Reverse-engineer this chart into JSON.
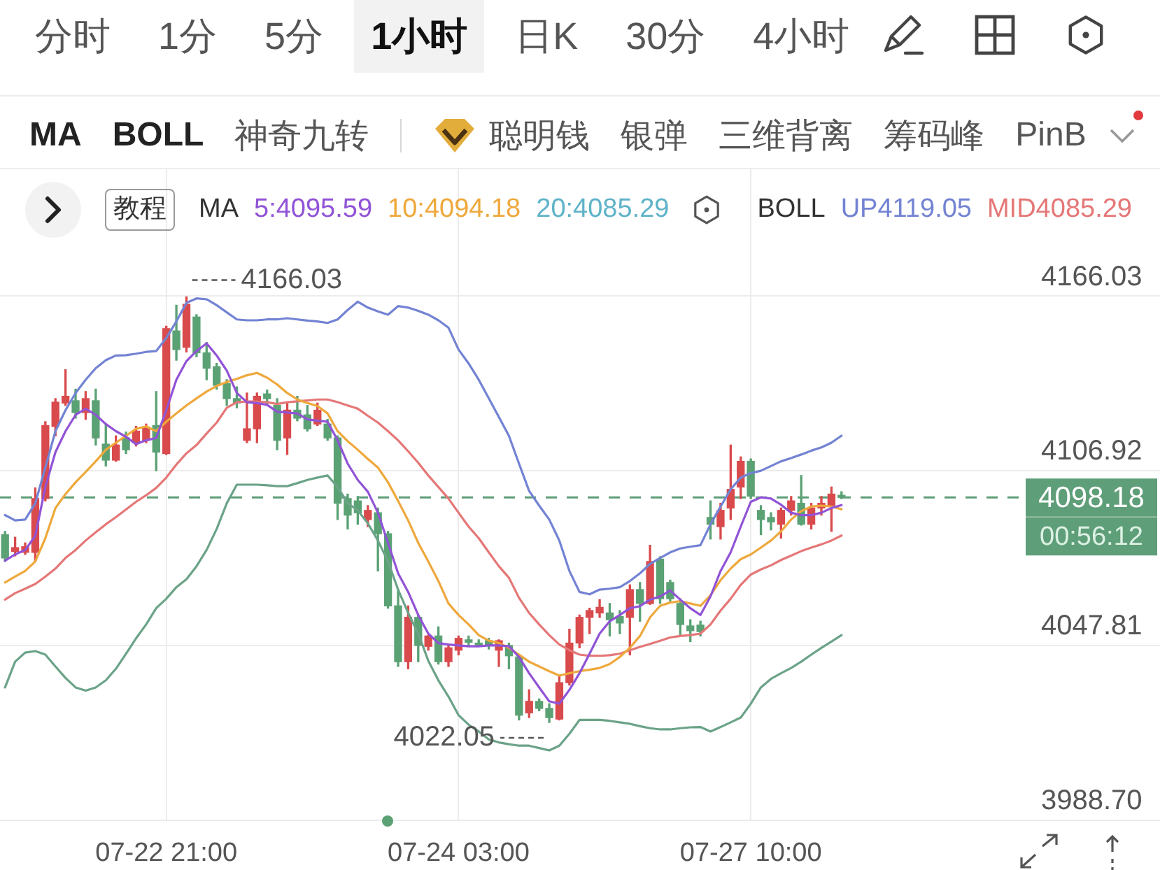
{
  "chart_data": {
    "type": "candlestick",
    "categories": [
      null,
      null,
      null,
      null,
      null,
      null,
      null,
      null,
      null,
      null,
      null,
      null,
      null,
      null,
      null,
      null,
      "07-22 21:00",
      null,
      null,
      null,
      null,
      null,
      null,
      null,
      null,
      null,
      null,
      null,
      null,
      null,
      null,
      null,
      null,
      null,
      null,
      null,
      null,
      null,
      null,
      null,
      null,
      null,
      null,
      null,
      null,
      "07-24 03:00",
      null,
      null,
      null,
      null,
      null,
      null,
      null,
      null,
      null,
      null,
      null,
      null,
      null,
      null,
      null,
      null,
      null,
      null,
      null,
      null,
      null,
      null,
      null,
      null,
      null,
      null,
      null,
      null,
      "07-27 10:00",
      null,
      null,
      null,
      null,
      null,
      null,
      null,
      null,
      null
    ],
    "ohlc": [
      [
        4085.6,
        4086.7,
        4076.5,
        4077.7
      ],
      [
        4079.9,
        4084.7,
        4078.4,
        4081.2
      ],
      [
        4079.6,
        4082.8,
        4078.9,
        4081.5
      ],
      [
        4079.6,
        4101.4,
        4076.5,
        4097.8
      ],
      [
        4097.8,
        4123.8,
        4097.0,
        4122.5
      ],
      [
        4122.2,
        4131.6,
        4119.0,
        4130.4
      ],
      [
        4130.1,
        4141.4,
        4129.3,
        4132.4
      ],
      [
        4130.9,
        4134.8,
        4125.0,
        4126.9
      ],
      [
        4126.9,
        4134.0,
        4124.6,
        4131.6
      ],
      [
        4130.9,
        4134.8,
        4115.9,
        4118.3
      ],
      [
        4116.2,
        4123.0,
        4108.8,
        4110.8
      ],
      [
        4110.8,
        4119.0,
        4110.4,
        4115.9
      ],
      [
        4118.3,
        4120.3,
        4113.0,
        4114.3
      ],
      [
        4116.7,
        4122.2,
        4115.6,
        4120.6
      ],
      [
        4117.5,
        4123.0,
        4116.7,
        4121.9
      ],
      [
        4122.5,
        4134.0,
        4107.2,
        4113.5
      ],
      [
        4113.0,
        4156.1,
        4112.7,
        4155.3
      ],
      [
        4154.5,
        4163.2,
        4144.6,
        4148.2
      ],
      [
        4149.0,
        4166.03,
        4147.4,
        4163.5
      ],
      [
        4159.2,
        4160.0,
        4145.8,
        4147.1
      ],
      [
        4147.1,
        4150.6,
        4138.0,
        4141.9
      ],
      [
        4142.4,
        4143.5,
        4134.8,
        4136.1
      ],
      [
        4136.7,
        4138.0,
        4129.3,
        4131.6
      ],
      [
        4131.6,
        4135.6,
        4128.5,
        4130.1
      ],
      [
        4117.5,
        4133.5,
        4116.7,
        4121.4
      ],
      [
        4121.4,
        4133.5,
        4116.7,
        4132.4
      ],
      [
        4133.2,
        4134.5,
        4129.3,
        4131.6
      ],
      [
        4129.3,
        4131.6,
        4114.3,
        4117.5
      ],
      [
        4118.3,
        4130.1,
        4112.7,
        4127.7
      ],
      [
        4127.7,
        4132.4,
        4124.1,
        4125.0
      ],
      [
        4126.1,
        4129.3,
        4120.6,
        4121.4
      ],
      [
        4123.0,
        4130.1,
        4122.5,
        4127.7
      ],
      [
        4123.0,
        4124.6,
        4117.5,
        4118.3
      ],
      [
        4118.3,
        4119.0,
        4090.7,
        4096.2
      ],
      [
        4097.8,
        4099.3,
        4087.5,
        4092.2
      ],
      [
        4097.0,
        4098.5,
        4089.1,
        4093.0
      ],
      [
        4090.7,
        4095.4,
        4088.3,
        4093.8
      ],
      [
        4093.0,
        4094.6,
        4073.3,
        4085.9
      ],
      [
        4085.9,
        4086.7,
        4060.7,
        4061.5
      ],
      [
        4061.5,
        4067.0,
        4041.0,
        4042.6
      ],
      [
        4042.6,
        4061.5,
        4040.2,
        4057.6
      ],
      [
        4057.6,
        4058.4,
        4042.6,
        4048.1
      ],
      [
        4047.8,
        4051.6,
        4046.5,
        4051.3
      ],
      [
        4051.3,
        4054.4,
        4041.8,
        4042.6
      ],
      [
        4042.6,
        4048.1,
        4041.0,
        4047.3
      ],
      [
        4046.5,
        4051.3,
        4044.9,
        4050.5
      ],
      [
        4050.0,
        4051.3,
        4047.8,
        4049.2
      ],
      [
        4048.9,
        4050.0,
        4047.8,
        4048.1
      ],
      [
        4049.7,
        4050.5,
        4046.9,
        4048.1
      ],
      [
        4046.5,
        4050.0,
        4041.0,
        4049.7
      ],
      [
        4048.1,
        4048.9,
        4040.2,
        4044.6
      ],
      [
        4044.2,
        4044.9,
        4022.9,
        4024.5
      ],
      [
        4025.3,
        4033.1,
        4023.7,
        4029.2
      ],
      [
        4029.2,
        4030.0,
        4026.0,
        4026.8
      ],
      [
        4026.8,
        4028.4,
        4022.05,
        4023.7
      ],
      [
        4023.2,
        4037.9,
        4022.9,
        4035.5
      ],
      [
        4035.5,
        4053.6,
        4034.7,
        4048.9
      ],
      [
        4048.9,
        4058.4,
        4047.3,
        4057.6
      ],
      [
        4057.6,
        4060.7,
        4052.1,
        4059.9
      ],
      [
        4059.1,
        4063.6,
        4057.6,
        4061.0
      ],
      [
        4059.1,
        4062.3,
        4051.3,
        4056.8
      ],
      [
        4057.9,
        4059.9,
        4052.1,
        4055.7
      ],
      [
        4057.6,
        4068.6,
        4044.9,
        4067.0
      ],
      [
        4067.0,
        4069.4,
        4056.3,
        4062.3
      ],
      [
        4062.3,
        4082.0,
        4062.0,
        4076.5
      ],
      [
        4077.3,
        4078.1,
        4062.3,
        4063.9
      ],
      [
        4069.4,
        4070.2,
        4063.1,
        4063.9
      ],
      [
        4062.3,
        4063.9,
        4051.3,
        4055.2
      ],
      [
        4054.7,
        4056.8,
        4049.4,
        4053.1
      ],
      [
        4055.0,
        4056.3,
        4051.3,
        4052.8
      ],
      [
        4091.4,
        4097.0,
        4084.1,
        4089.1
      ],
      [
        4088.3,
        4096.2,
        4084.1,
        4093.8
      ],
      [
        4094.6,
        4115.9,
        4090.7,
        4100.9
      ],
      [
        4101.7,
        4111.9,
        4097.8,
        4110.4
      ],
      [
        4110.4,
        4111.2,
        4097.8,
        4098.6
      ],
      [
        4093.8,
        4095.4,
        4085.6,
        4090.7
      ],
      [
        4091.4,
        4093.0,
        4087.2,
        4089.9
      ],
      [
        4089.1,
        4094.6,
        4084.4,
        4093.8
      ],
      [
        4093.8,
        4098.5,
        4092.2,
        4097.0
      ],
      [
        4096.2,
        4105.6,
        4088.8,
        4089.1
      ],
      [
        4089.1,
        4096.2,
        4087.5,
        4094.6
      ],
      [
        4094.6,
        4098.5,
        4092.2,
        4096.2
      ],
      [
        4095.4,
        4101.7,
        4086.7,
        4099.3
      ],
      [
        4098.9,
        4100.1,
        4097.8,
        4098.18
      ]
    ],
    "colors": [
      "#5aa174",
      "#d94a4c",
      "#d94a4c",
      "#d94a4c",
      "#d94a4c",
      "#d94a4c",
      "#d94a4c",
      "#5aa174",
      "#d94a4c",
      "#5aa174",
      "#5aa174",
      "#d94a4c",
      "#5aa174",
      "#d94a4c",
      "#d94a4c",
      "#5aa174",
      "#d94a4c",
      "#5aa174",
      "#d94a4c",
      "#5aa174",
      "#5aa174",
      "#5aa174",
      "#5aa174",
      "#5aa174",
      "#d94a4c",
      "#d94a4c",
      "#5aa174",
      "#5aa174",
      "#d94a4c",
      "#5aa174",
      "#5aa174",
      "#d94a4c",
      "#5aa174",
      "#5aa174",
      "#5aa174",
      "#5aa174",
      "#d94a4c",
      "#5aa174",
      "#5aa174",
      "#5aa174",
      "#d94a4c",
      "#5aa174",
      "#d94a4c",
      "#5aa174",
      "#d94a4c",
      "#d94a4c",
      "#5aa174",
      "#5aa174",
      "#5aa174",
      "#d94a4c",
      "#5aa174",
      "#5aa174",
      "#d94a4c",
      "#5aa174",
      "#5aa174",
      "#d94a4c",
      "#d94a4c",
      "#d94a4c",
      "#d94a4c",
      "#d94a4c",
      "#5aa174",
      "#5aa174",
      "#d94a4c",
      "#5aa174",
      "#d94a4c",
      "#5aa174",
      "#5aa174",
      "#5aa174",
      "#5aa174",
      "#5aa174",
      "#5aa174",
      "#d94a4c",
      "#d94a4c",
      "#d94a4c",
      "#5aa174",
      "#5aa174",
      "#5aa174",
      "#d94a4c",
      "#d94a4c",
      "#5aa174",
      "#d94a4c",
      "#d94a4c",
      "#d94a4c",
      "#5aa174"
    ],
    "series": [
      {
        "name": "5:4095.59",
        "type": "line",
        "color": "#9153d6",
        "values": [
          4076.8,
          4078.9,
          4080.4,
          4085.2,
          4101.7,
          4113.5,
          4120.6,
          4126.1,
          4128.2,
          4126.1,
          4123.0,
          4120.6,
          4118.7,
          4116.2,
          4117.5,
          4118.3,
          4127.7,
          4138.0,
          4144.3,
          4147.7,
          4150.3,
          4146.2,
          4141.1,
          4133.5,
          4130.4,
          4130.1,
          4129.5,
          4127.2,
          4126.9,
          4126.6,
          4124.6,
          4124.1,
          4123.8,
          4117.5,
          4109.6,
          4104.1,
          4100.1,
          4093.0,
          4082.8,
          4072.5,
          4066.2,
          4058.4,
          4052.1,
          4048.9,
          4048.4,
          4048.1,
          4047.8,
          4047.8,
          4048.1,
          4048.1,
          4047.8,
          4044.2,
          4038.7,
          4033.9,
          4029.2,
          4028.4,
          4033.1,
          4038.7,
          4045.3,
          4052.1,
          4056.3,
          4058.4,
          4060.7,
          4061.4,
          4063.6,
          4064.7,
          4066.7,
          4063.6,
          4060.7,
          4058.4,
          4064.7,
          4073.3,
          4079.6,
          4088.3,
          4096.7,
          4098.2,
          4097.8,
          4095.7,
          4093.0,
          4092.2,
          4092.2,
          4093.0,
          4094.6,
          4095.59
        ]
      },
      {
        "name": "10:4094.18",
        "type": "line",
        "color": "#eea83c",
        "values": [
          4069.4,
          4071.4,
          4073.3,
          4076.5,
          4084.4,
          4094.6,
          4099.3,
          4103.3,
          4106.8,
          4110.4,
          4114.3,
          4116.7,
          4119.0,
          4121.4,
          4122.2,
          4120.6,
          4123.8,
          4126.6,
          4129.3,
          4131.7,
          4134.0,
          4135.9,
          4137.2,
          4138.3,
          4139.5,
          4140.3,
          4138.7,
          4136.4,
          4133.5,
          4131.3,
          4130.1,
          4129.1,
          4126.6,
          4120.6,
          4117.2,
          4114.3,
          4111.2,
          4108.3,
          4103.3,
          4097.0,
          4090.4,
          4082.8,
          4076.5,
          4069.9,
          4062.3,
          4058.4,
          4055.2,
          4051.6,
          4049.7,
          4048.9,
          4047.3,
          4045.0,
          4042.6,
          4041.0,
          4039.4,
          4037.9,
          4038.7,
          4039.4,
          4039.9,
          4040.5,
          4041.8,
          4044.2,
          4047.3,
          4051.3,
          4057.6,
          4061.5,
          4062.6,
          4063.1,
          4062.3,
          4061.5,
          4065.1,
          4070.2,
          4074.1,
          4077.3,
          4078.9,
          4081.2,
          4083.6,
          4086.7,
          4090.7,
          4093.5,
          4095.1,
          4095.4,
          4095.1,
          4094.18
        ]
      },
      {
        "name": "UP4119.05",
        "type": "line",
        "color": "#7383d3",
        "values": [
          4092.2,
          4090.4,
          4090.7,
          4096.2,
          4108.3,
          4120.6,
          4127.7,
          4133.5,
          4138.0,
          4141.9,
          4144.6,
          4146.2,
          4146.3,
          4146.8,
          4147.4,
          4147.7,
          4152.1,
          4157.7,
          4164.0,
          4165.5,
          4165.2,
          4163.2,
          4160.8,
          4158.4,
          4158.1,
          4158.1,
          4158.4,
          4158.4,
          4158.8,
          4158.4,
          4158.0,
          4157.7,
          4157.2,
          4158.4,
          4161.6,
          4164.4,
          4162.4,
          4161.1,
          4160.0,
          4162.9,
          4162.4,
          4161.3,
          4160.0,
          4158.1,
          4155.6,
          4148.2,
          4143.5,
          4138.0,
          4131.7,
          4125.4,
          4119.0,
          4109.6,
          4100.4,
          4095.4,
          4090.7,
          4083.6,
          4073.3,
          4066.2,
          4065.4,
          4067.0,
          4067.3,
          4067.8,
          4069.9,
          4072.5,
          4075.7,
          4077.7,
          4079.6,
          4080.9,
          4081.5,
          4082.0,
          4089.1,
          4095.1,
          4100.9,
          4104.9,
          4106.4,
          4107.2,
          4108.8,
          4110.4,
          4111.5,
          4112.7,
          4114.0,
          4115.1,
          4116.7,
          4119.05
        ]
      },
      {
        "name": "MID4085.29",
        "type": "line",
        "color": "#e57777",
        "values": [
          4063.6,
          4065.8,
          4067.3,
          4068.9,
          4071.4,
          4074.1,
          4077.7,
          4080.4,
          4083.6,
          4086.4,
          4089.1,
          4091.5,
          4094.1,
          4096.7,
          4098.9,
          4101.4,
          4104.9,
          4109.3,
          4113.1,
          4115.9,
          4119.8,
          4123.5,
          4128.5,
          4130.4,
          4130.6,
          4130.6,
          4130.4,
          4129.8,
          4130.4,
          4130.7,
          4131.0,
          4131.3,
          4131.3,
          4130.4,
          4129.3,
          4128.2,
          4125.8,
          4123.5,
          4120.6,
          4117.5,
          4113.8,
          4109.9,
          4105.6,
          4101.7,
          4097.8,
          4093.0,
          4088.3,
          4084.4,
          4079.6,
          4074.9,
          4071.0,
          4064.2,
          4059.1,
          4055.2,
          4051.6,
          4048.4,
          4046.5,
          4045.0,
          4044.6,
          4044.6,
          4044.8,
          4045.3,
          4046.5,
          4047.6,
          4048.6,
          4049.7,
          4050.8,
          4051.3,
          4051.6,
          4052.1,
          4055.2,
          4059.9,
          4063.9,
          4068.6,
          4072.1,
          4073.8,
          4075.2,
          4077.0,
          4078.5,
          4080.0,
          4081.2,
          4082.3,
          4083.6,
          4085.29
        ]
      },
      {
        "type": "line",
        "color": "#6ba388",
        "values": [
          4033.9,
          4042.6,
          4045.7,
          4046.2,
          4045.0,
          4041.0,
          4037.1,
          4033.9,
          4032.8,
          4033.9,
          4036.3,
          4040.2,
          4045.3,
          4050.5,
          4055.2,
          4060.7,
          4063.9,
          4067.8,
          4070.5,
          4074.9,
          4080.4,
          4087.5,
          4096.2,
          4102.5,
          4102.5,
          4102.5,
          4102.3,
          4102.0,
          4102.0,
          4103.0,
          4104.1,
          4104.9,
          4105.6,
          4101.7,
          4096.2,
          4093.8,
          4089.4,
          4083.6,
          4076.5,
          4067.0,
          4059.1,
          4052.1,
          4042.9,
          4036.3,
          4030.8,
          4024.5,
          4021.3,
          4019.0,
          4016.3,
          4015.3,
          4014.7,
          4014.2,
          4014.2,
          4013.4,
          4012.6,
          4014.2,
          4018.2,
          4022.9,
          4022.9,
          4022.9,
          4022.6,
          4022.1,
          4021.6,
          4020.8,
          4020.1,
          4019.7,
          4019.7,
          4020.1,
          4020.4,
          4020.5,
          4019.0,
          4020.5,
          4022.1,
          4023.7,
          4028.4,
          4033.9,
          4036.8,
          4038.7,
          4040.5,
          4042.6,
          4045.0,
          4047.3,
          4049.4,
          4051.6
        ]
      }
    ],
    "ylim": [
      3988.7,
      4209.2
    ],
    "yticks": [
      {
        "value": 3988.7,
        "label": "3988.70"
      },
      4047.81,
      4106.92,
      4166.03
    ],
    "grid": true,
    "legend": "top",
    "ref_lines": [
      {
        "axis": "y",
        "value": 4098.18,
        "label": "4098.18",
        "color": "#5e9e78",
        "line_style": "dashed"
      }
    ],
    "annotations": [
      "分时",
      "1分",
      "5分",
      "1小时",
      "日K",
      "30分",
      "4小时",
      "MA",
      "BOLL",
      "神奇九转",
      "聪明钱",
      "银弹",
      "三维背离",
      "筹码峰",
      "PinB",
      "教程",
      "MA",
      "20:4085.29",
      "BOLL",
      "00:56:12",
      "4166.03",
      "4022.05"
    ]
  }
}
